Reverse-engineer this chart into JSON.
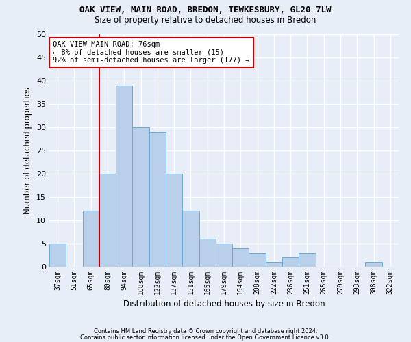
{
  "title1": "OAK VIEW, MAIN ROAD, BREDON, TEWKESBURY, GL20 7LW",
  "title2": "Size of property relative to detached houses in Bredon",
  "xlabel": "Distribution of detached houses by size in Bredon",
  "ylabel": "Number of detached properties",
  "categories": [
    "37sqm",
    "51sqm",
    "65sqm",
    "80sqm",
    "94sqm",
    "108sqm",
    "122sqm",
    "137sqm",
    "151sqm",
    "165sqm",
    "179sqm",
    "194sqm",
    "208sqm",
    "222sqm",
    "236sqm",
    "251sqm",
    "265sqm",
    "279sqm",
    "293sqm",
    "308sqm",
    "322sqm"
  ],
  "values": [
    5,
    0,
    12,
    20,
    39,
    30,
    29,
    20,
    12,
    6,
    5,
    4,
    3,
    1,
    2,
    3,
    0,
    0,
    0,
    1,
    0
  ],
  "bar_color": "#b8d0ea",
  "bar_edge_color": "#6aaad4",
  "annotation_text": "OAK VIEW MAIN ROAD: 76sqm\n← 8% of detached houses are smaller (15)\n92% of semi-detached houses are larger (177) →",
  "annotation_box_color": "white",
  "annotation_box_edge_color": "#cc0000",
  "vline_color": "#cc0000",
  "ylim": [
    0,
    50
  ],
  "yticks": [
    0,
    5,
    10,
    15,
    20,
    25,
    30,
    35,
    40,
    45,
    50
  ],
  "footer1": "Contains HM Land Registry data © Crown copyright and database right 2024.",
  "footer2": "Contains public sector information licensed under the Open Government Licence v3.0.",
  "background_color": "#e8eef8",
  "plot_bg_color": "#e8eef8",
  "grid_color": "white"
}
